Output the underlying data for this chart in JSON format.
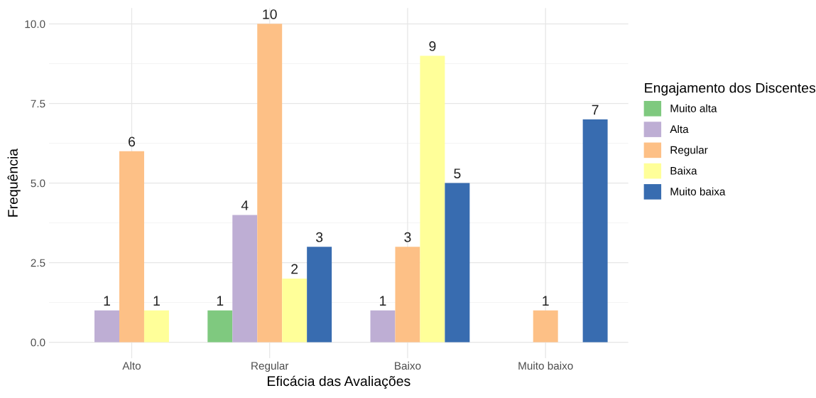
{
  "chart_data": {
    "type": "bar",
    "xlabel": "Eficácia das Avaliações",
    "ylabel": "Frequência",
    "legend_title": "Engajamento dos Discentes",
    "categories": [
      "Alto",
      "Regular",
      "Baixo",
      "Muito baixo"
    ],
    "series": [
      {
        "name": "Muito alta",
        "color": "#7fc97f",
        "values": [
          null,
          1,
          null,
          null
        ]
      },
      {
        "name": "Alta",
        "color": "#beaed4",
        "values": [
          1,
          4,
          1,
          null
        ]
      },
      {
        "name": "Regular",
        "color": "#fdc086",
        "values": [
          6,
          10,
          3,
          1
        ]
      },
      {
        "name": "Baixa",
        "color": "#ffff99",
        "values": [
          1,
          2,
          9,
          null
        ]
      },
      {
        "name": "Muito baixa",
        "color": "#386cb0",
        "values": [
          null,
          3,
          5,
          7
        ]
      }
    ],
    "ylim": [
      -0.5,
      10.5
    ],
    "yticks": [
      {
        "value": 0,
        "label": "0.0"
      },
      {
        "value": 2.5,
        "label": "2.5"
      },
      {
        "value": 5,
        "label": "5.0"
      },
      {
        "value": 7.5,
        "label": "7.5"
      },
      {
        "value": 10,
        "label": "10.0"
      }
    ],
    "grid": true,
    "legend": "right",
    "data_labels": true
  }
}
